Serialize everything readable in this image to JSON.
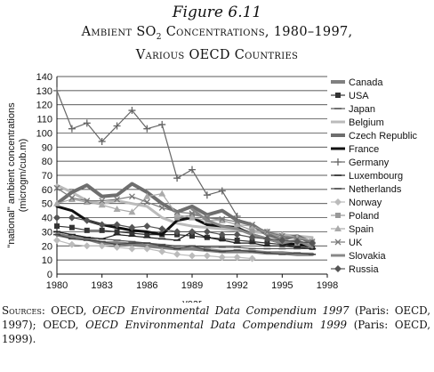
{
  "figure": {
    "number": "Figure 6.11",
    "title_pre": "Ambient SO",
    "title_sub": "2",
    "title_post": " Concentrations, 1980–1997,",
    "title_line2": "Various OECD Countries"
  },
  "sources": {
    "label": "Sources:",
    "part1": " OECD, ",
    "title1": "OECD Environmental Data Compendium 1997",
    "part2": " (Paris: OECD, 1997); OECD, ",
    "title2": "OECD Environmental Data Compendium 1999",
    "part3": " (Paris: OECD, 1999)."
  },
  "chart_data": {
    "type": "line",
    "xlabel": "year",
    "ylabel": "\"national\" ambient concentrations (microgm/cub.m)",
    "xlim": [
      1980,
      1998
    ],
    "ylim": [
      0,
      140
    ],
    "xticks": [
      1980,
      1983,
      1986,
      1989,
      1992,
      1995,
      1998
    ],
    "yticks": [
      0,
      10,
      20,
      30,
      40,
      50,
      60,
      70,
      80,
      90,
      100,
      110,
      120,
      130,
      140
    ],
    "grid": "horizontal",
    "legend_position": "right",
    "series": [
      {
        "name": "Canada",
        "color": "#808080",
        "marker": "none",
        "width": 4,
        "x": [
          1980,
          1981,
          1982,
          1983,
          1984,
          1985,
          1986,
          1987,
          1988,
          1989,
          1990,
          1991,
          1992,
          1993,
          1994,
          1995,
          1996,
          1997
        ],
        "y": [
          28,
          26,
          25,
          22,
          22,
          21,
          20,
          19,
          18,
          18,
          17,
          16,
          16,
          16,
          15,
          15,
          14,
          14
        ]
      },
      {
        "name": "USA",
        "color": "#333333",
        "marker": "square",
        "width": 1.2,
        "x": [
          1980,
          1981,
          1982,
          1983,
          1984,
          1985,
          1986,
          1987,
          1988,
          1989,
          1990,
          1991,
          1992,
          1993,
          1994,
          1995,
          1996,
          1997
        ],
        "y": [
          34,
          33,
          31,
          31,
          30,
          29,
          28,
          28,
          28,
          27,
          26,
          25,
          24,
          23,
          22,
          21,
          20,
          19
        ]
      },
      {
        "name": "Japan",
        "color": "#555555",
        "marker": "dash",
        "width": 1.2,
        "x": [
          1980,
          1981,
          1982,
          1983,
          1984,
          1985,
          1986,
          1987,
          1988,
          1989,
          1990,
          1991,
          1992,
          1993,
          1994,
          1995,
          1996,
          1997
        ],
        "y": [
          30,
          28,
          26,
          25,
          24,
          23,
          22,
          21,
          20,
          20,
          19,
          19,
          19,
          18,
          18,
          18,
          18,
          18
        ]
      },
      {
        "name": "Belgium",
        "color": "#bbbbbb",
        "marker": "none",
        "width": 3,
        "x": [
          1980,
          1981,
          1982,
          1983,
          1984,
          1985,
          1986,
          1987,
          1988,
          1989,
          1990,
          1991,
          1992,
          1993,
          1994,
          1995,
          1996,
          1997
        ],
        "y": [
          63,
          58,
          52,
          50,
          52,
          50,
          48,
          40,
          36,
          34,
          33,
          32,
          31,
          30,
          29,
          28,
          27,
          26
        ]
      },
      {
        "name": "Czech Republic",
        "color": "#6e6e6e",
        "marker": "none",
        "width": 4,
        "x": [
          1980,
          1981,
          1982,
          1983,
          1984,
          1985,
          1986,
          1987,
          1988,
          1989,
          1990,
          1991,
          1992,
          1993,
          1994,
          1995,
          1996,
          1997
        ],
        "y": [
          50,
          58,
          63,
          55,
          56,
          64,
          58,
          50,
          44,
          48,
          42,
          45,
          38,
          35,
          28,
          25,
          27,
          22
        ]
      },
      {
        "name": "France",
        "color": "#111111",
        "marker": "none",
        "width": 3,
        "x": [
          1980,
          1981,
          1982,
          1983,
          1984,
          1985,
          1986,
          1987,
          1988,
          1989,
          1990,
          1991,
          1992,
          1993,
          1994,
          1995,
          1996,
          1997
        ],
        "y": [
          48,
          45,
          38,
          35,
          33,
          31,
          30,
          28,
          38,
          40,
          35,
          34,
          33,
          28,
          25,
          22,
          21,
          20
        ]
      },
      {
        "name": "Germany",
        "color": "#666666",
        "marker": "plus",
        "width": 1.2,
        "x": [
          1980,
          1981,
          1982,
          1983,
          1984,
          1985,
          1986,
          1987,
          1988,
          1989,
          1990,
          1991,
          1992
        ],
        "y": [
          130,
          103,
          107,
          94,
          105,
          116,
          103,
          106,
          68,
          74,
          56,
          59,
          41
        ]
      },
      {
        "name": "Luxembourg",
        "color": "#222222",
        "marker": "dash",
        "width": 1.2,
        "x": [
          1980,
          1981,
          1982,
          1983,
          1984,
          1985,
          1986,
          1987,
          1988,
          1989,
          1990,
          1991,
          1992,
          1993,
          1994,
          1995,
          1996,
          1997
        ],
        "y": [
          30,
          28,
          26,
          25,
          28,
          27,
          26,
          25,
          24,
          30,
          26,
          24,
          22,
          22,
          20,
          20,
          19,
          18
        ]
      },
      {
        "name": "Netherlands",
        "color": "#444444",
        "marker": "dash",
        "width": 1.2,
        "x": [
          1980,
          1981,
          1982,
          1983,
          1984,
          1985,
          1986,
          1987,
          1988,
          1989,
          1990,
          1991,
          1992,
          1993,
          1994,
          1995,
          1996,
          1997
        ],
        "y": [
          28,
          25,
          24,
          23,
          21,
          22,
          22,
          20,
          18,
          20,
          17,
          16,
          17,
          16,
          15,
          14,
          15,
          14
        ]
      },
      {
        "name": "Norway",
        "color": "#bbbbbb",
        "marker": "diamond",
        "width": 1.2,
        "x": [
          1980,
          1981,
          1982,
          1983,
          1984,
          1985,
          1986,
          1987,
          1988,
          1989,
          1990,
          1991,
          1992,
          1993
        ],
        "y": [
          24,
          21,
          20,
          20,
          19,
          18,
          18,
          16,
          14,
          13,
          13,
          12,
          12,
          11
        ]
      },
      {
        "name": "Poland",
        "color": "#999999",
        "marker": "square",
        "width": 1.2,
        "x": [
          1988,
          1989,
          1990,
          1991,
          1992,
          1993,
          1994,
          1995,
          1996,
          1997
        ],
        "y": [
          40,
          42,
          40,
          38,
          35,
          31,
          30,
          25,
          22,
          22
        ]
      },
      {
        "name": "Spain",
        "color": "#aaaaaa",
        "marker": "triangle",
        "width": 1.2,
        "x": [
          1980,
          1981,
          1982,
          1983,
          1984,
          1985,
          1986,
          1987,
          1988,
          1989,
          1990,
          1991,
          1992,
          1993,
          1994,
          1995,
          1996,
          1997
        ],
        "y": [
          50,
          53,
          51,
          49,
          46,
          44,
          55,
          57,
          42,
          40,
          38,
          38,
          35,
          34,
          30,
          28,
          26,
          24
        ]
      },
      {
        "name": "UK",
        "color": "#777777",
        "marker": "x",
        "width": 1.2,
        "x": [
          1980,
          1981,
          1982,
          1983,
          1984,
          1985,
          1986,
          1987,
          1988,
          1989,
          1990,
          1991,
          1992,
          1993,
          1994,
          1995,
          1996,
          1997
        ],
        "y": [
          61,
          54,
          52,
          52,
          53,
          55,
          51,
          47,
          44,
          43,
          40,
          39,
          37,
          35,
          30,
          27,
          25,
          23
        ]
      },
      {
        "name": "Slovakia",
        "color": "#888888",
        "marker": "none",
        "width": 3,
        "x": [
          1989,
          1990,
          1991,
          1992,
          1993,
          1994,
          1995,
          1996,
          1997
        ],
        "y": [
          46,
          38,
          34,
          32,
          28,
          25,
          22,
          24,
          19
        ]
      },
      {
        "name": "Russia",
        "color": "#555555",
        "marker": "diamond",
        "width": 1.2,
        "x": [
          1980,
          1981,
          1982,
          1983,
          1984,
          1985,
          1986,
          1987,
          1988,
          1989,
          1990,
          1991,
          1992,
          1993,
          1994,
          1995,
          1996,
          1997
        ],
        "y": [
          40,
          40,
          38,
          35,
          35,
          33,
          34,
          32,
          30,
          30,
          30,
          28,
          28,
          26,
          25,
          24,
          23,
          22
        ]
      }
    ]
  }
}
